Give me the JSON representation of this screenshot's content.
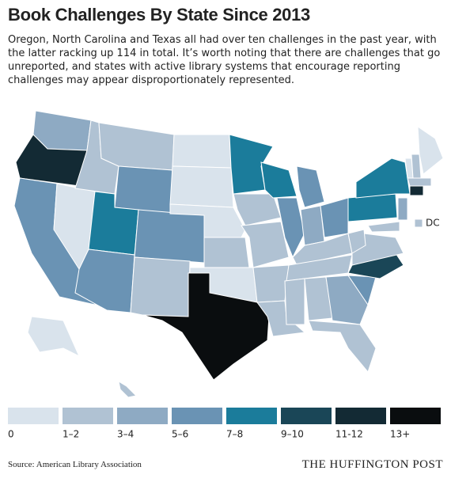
{
  "header": {
    "title": "Book Challenges By State Since 2013",
    "subtitle": "Oregon, North Carolina and Texas all had over ten challenges in the past year, with the latter racking up 114 in total. It’s worth noting that there are challenges that go unreported, and states with active library systems that encourage reporting challenges may appear disproportionately represented."
  },
  "map": {
    "dc_label": "DC"
  },
  "legend": [
    {
      "label": "0",
      "color": "#d9e3ec"
    },
    {
      "label": "1–2",
      "color": "#b0c2d3"
    },
    {
      "label": "3–4",
      "color": "#8eaac3"
    },
    {
      "label": "5–6",
      "color": "#6a93b4"
    },
    {
      "label": "7–8",
      "color": "#1b7c9b"
    },
    {
      "label": "9–10",
      "color": "#1a4657"
    },
    {
      "label": "11-12",
      "color": "#132a34"
    },
    {
      "label": "13+",
      "color": "#0a0d0f"
    }
  ],
  "footer": {
    "source": "Source: American Library Association",
    "brand": "THE HUFFINGTON POST"
  }
}
